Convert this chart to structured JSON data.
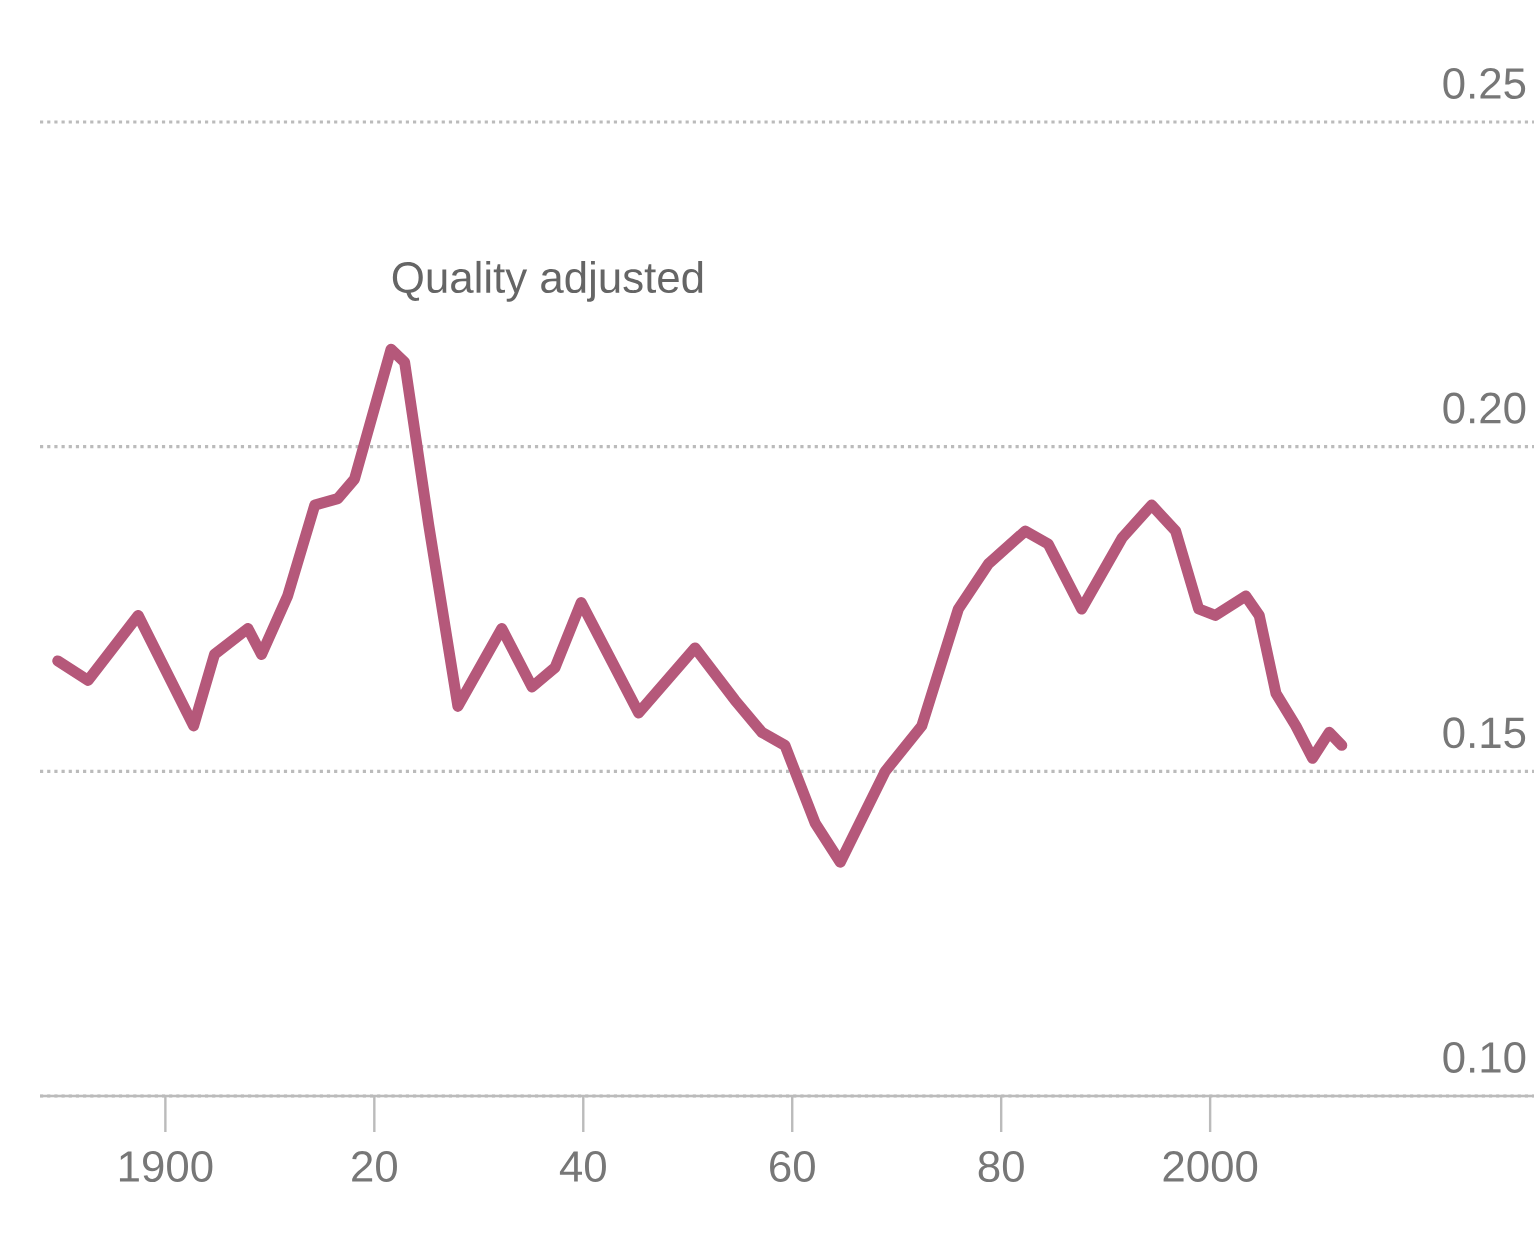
{
  "chart_data": {
    "type": "line",
    "x": [
      1889.7,
      1892.6,
      1897.4,
      1902.7,
      1904.7,
      1907.9,
      1909.2,
      1911.7,
      1914.3,
      1916.5,
      1918.1,
      1921.6,
      1922.9,
      1925.2,
      1928.0,
      1932.2,
      1935.1,
      1937.3,
      1939.8,
      1945.3,
      1950.7,
      1954.5,
      1957.1,
      1959.3,
      1962.2,
      1964.6,
      1968.9,
      1972.4,
      1975.9,
      1978.8,
      1982.3,
      1984.5,
      1987.7,
      1991.6,
      1994.4,
      1996.7,
      1998.9,
      2000.5,
      2003.4,
      2004.7,
      2006.3,
      2008.2,
      2009.8,
      2011.4,
      2012.6
    ],
    "series": [
      {
        "name": "Quality adjusted",
        "color": "#b5587a",
        "values": [
          0.167,
          0.164,
          0.174,
          0.157,
          0.168,
          0.172,
          0.168,
          0.177,
          0.191,
          0.192,
          0.195,
          0.215,
          0.213,
          0.188,
          0.16,
          0.172,
          0.163,
          0.166,
          0.176,
          0.159,
          0.169,
          0.161,
          0.156,
          0.154,
          0.142,
          0.136,
          0.15,
          0.157,
          0.175,
          0.182,
          0.187,
          0.185,
          0.175,
          0.186,
          0.191,
          0.187,
          0.175,
          0.174,
          0.177,
          0.174,
          0.162,
          0.157,
          0.152,
          0.156,
          0.154
        ]
      }
    ],
    "xlim": [
      1888,
      2031
    ],
    "xticks": [
      1900,
      {
        "value": 1920,
        "label": "20"
      },
      {
        "value": 1940,
        "label": "40"
      },
      {
        "value": 1960,
        "label": "60"
      },
      {
        "value": 1980,
        "label": "80"
      },
      2000
    ],
    "ylim": [
      0.1,
      0.25
    ],
    "yticks": [
      {
        "value": 0.1,
        "label": "0.10"
      },
      0.15,
      {
        "value": 0.2,
        "label": "0.20"
      },
      0.25
    ],
    "grid": "y",
    "marker": "none",
    "line_style": "solid"
  }
}
